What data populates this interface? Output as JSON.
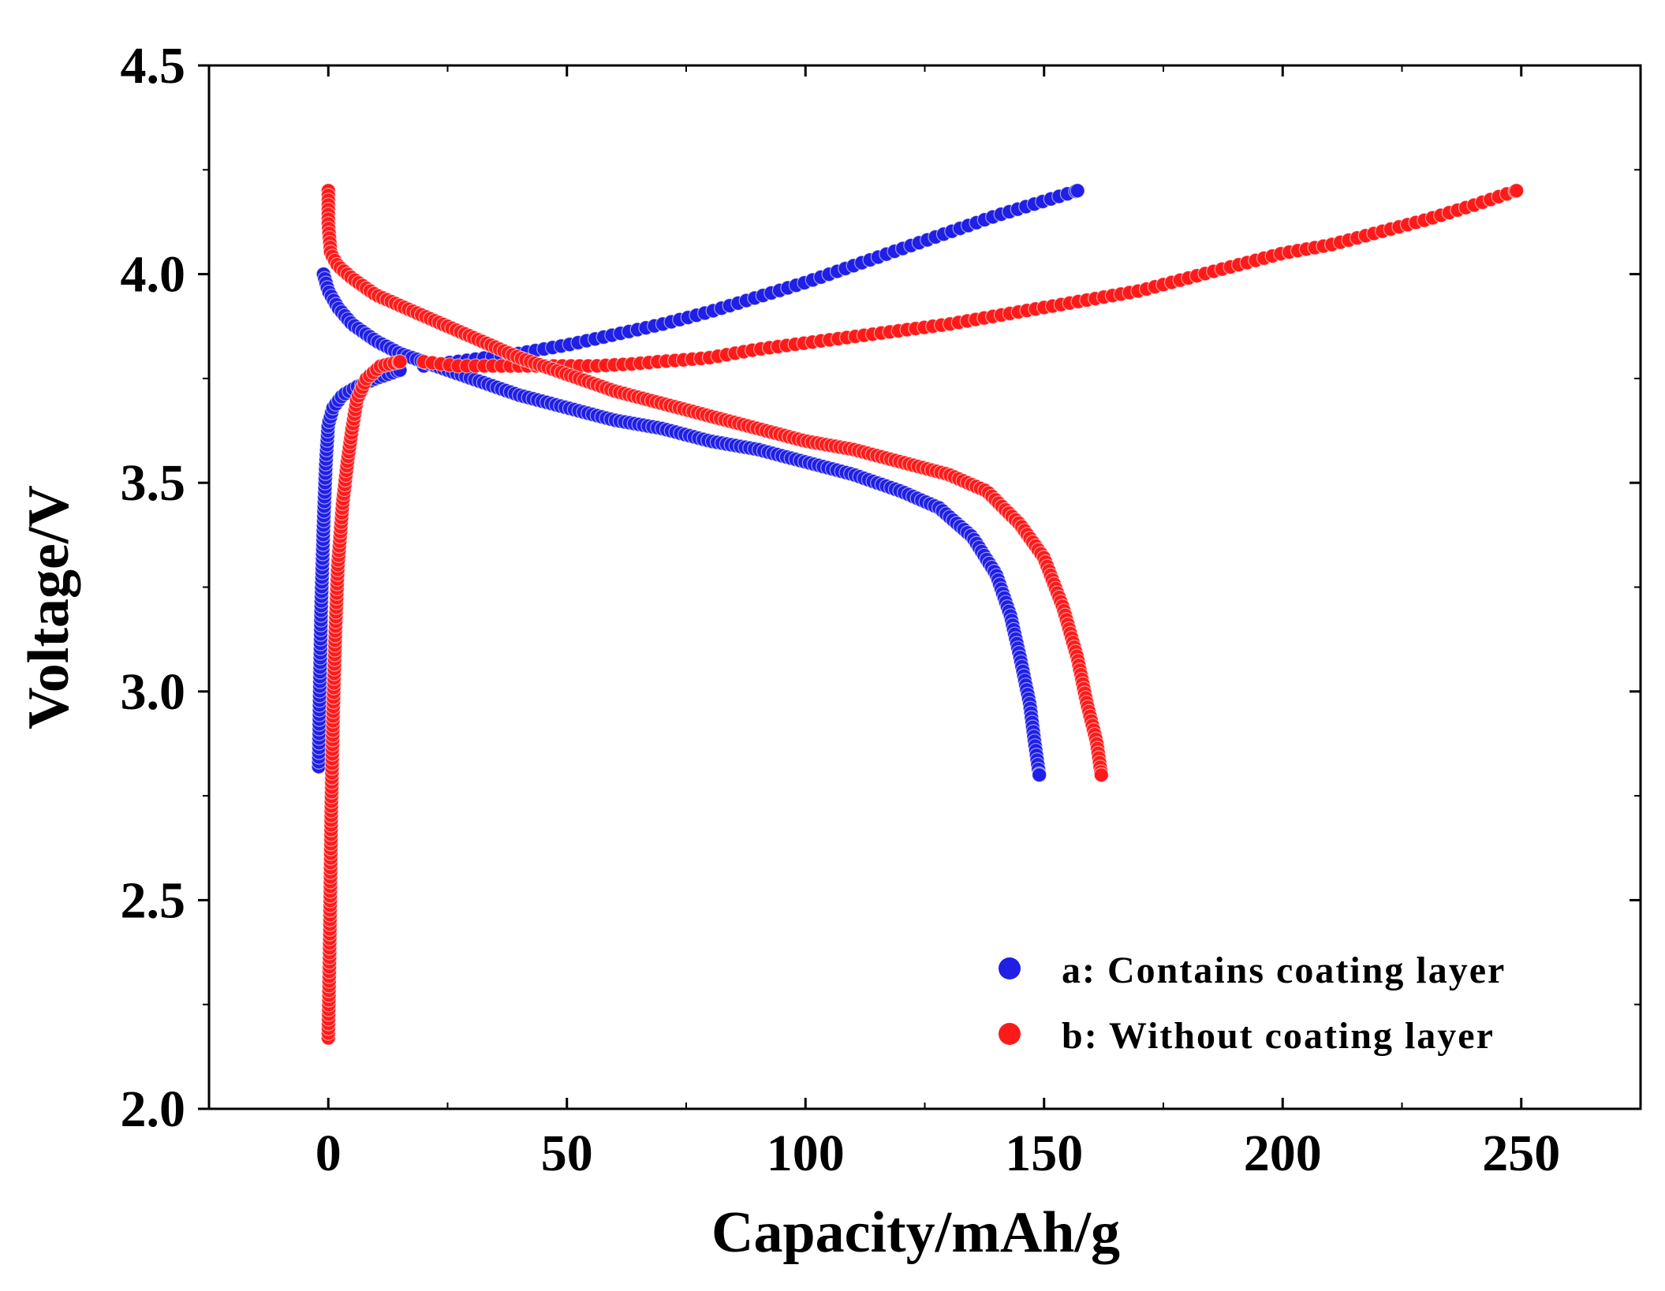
{
  "chart_data": {
    "type": "scatter",
    "title": "",
    "xlabel": "Capacity/mAh/g",
    "ylabel": "Voltage/V",
    "xlim": [
      -25,
      275
    ],
    "ylim": [
      2.0,
      4.5
    ],
    "x_ticks": [
      "0",
      "50",
      "100",
      "150",
      "200",
      "250"
    ],
    "x_tick_values": [
      0,
      50,
      100,
      150,
      200,
      250
    ],
    "y_ticks": [
      "2.0",
      "2.5",
      "3.0",
      "3.5",
      "4.0",
      "4.5"
    ],
    "y_tick_values": [
      2.0,
      2.5,
      3.0,
      3.5,
      4.0,
      4.5
    ],
    "x_minor_step": 25,
    "y_minor_step": 0.25,
    "grid": false,
    "legend_position": "bottom-right",
    "series": [
      {
        "name": "a: Contains coating layer",
        "legend_label": "a:  Contains  coating layer",
        "color": "#1f1fe6",
        "curves": [
          {
            "segment": "charge-rise",
            "points": [
              [
                -2,
                2.82
              ],
              [
                -1.8,
                3.0
              ],
              [
                -1.5,
                3.2
              ],
              [
                -1,
                3.4
              ],
              [
                -0.5,
                3.55
              ],
              [
                0,
                3.64
              ],
              [
                1,
                3.68
              ],
              [
                3,
                3.71
              ],
              [
                6,
                3.73
              ],
              [
                10,
                3.75
              ],
              [
                15,
                3.77
              ]
            ]
          },
          {
            "segment": "charge-plateau",
            "points": [
              [
                20,
                3.78
              ],
              [
                30,
                3.795
              ],
              [
                40,
                3.81
              ],
              [
                50,
                3.83
              ],
              [
                60,
                3.855
              ],
              [
                70,
                3.88
              ],
              [
                80,
                3.91
              ],
              [
                90,
                3.945
              ],
              [
                100,
                3.98
              ],
              [
                110,
                4.02
              ],
              [
                120,
                4.06
              ],
              [
                130,
                4.1
              ],
              [
                140,
                4.14
              ],
              [
                150,
                4.175
              ],
              [
                157,
                4.2
              ]
            ]
          },
          {
            "segment": "discharge",
            "points": [
              [
                -1,
                4.0
              ],
              [
                0,
                3.96
              ],
              [
                2,
                3.92
              ],
              [
                5,
                3.88
              ],
              [
                10,
                3.84
              ],
              [
                15,
                3.81
              ],
              [
                20,
                3.79
              ],
              [
                30,
                3.75
              ],
              [
                40,
                3.71
              ],
              [
                50,
                3.68
              ],
              [
                60,
                3.65
              ],
              [
                70,
                3.63
              ],
              [
                80,
                3.6
              ],
              [
                90,
                3.58
              ],
              [
                100,
                3.55
              ],
              [
                110,
                3.52
              ],
              [
                120,
                3.48
              ],
              [
                128,
                3.44
              ],
              [
                135,
                3.37
              ],
              [
                140,
                3.28
              ],
              [
                143,
                3.18
              ],
              [
                145,
                3.08
              ],
              [
                147,
                2.97
              ],
              [
                148,
                2.88
              ],
              [
                149,
                2.8
              ]
            ]
          }
        ]
      },
      {
        "name": "b: Without coating layer",
        "legend_label": "b:  Without coating layer",
        "color": "#ff1a1a",
        "curves": [
          {
            "segment": "charge-rise",
            "points": [
              [
                0,
                2.17
              ],
              [
                0.3,
                2.4
              ],
              [
                0.6,
                2.7
              ],
              [
                1,
                2.95
              ],
              [
                1.5,
                3.15
              ],
              [
                2,
                3.3
              ],
              [
                3,
                3.45
              ],
              [
                4,
                3.55
              ],
              [
                5,
                3.63
              ],
              [
                6,
                3.7
              ],
              [
                8,
                3.75
              ],
              [
                11,
                3.78
              ],
              [
                15,
                3.79
              ]
            ]
          },
          {
            "segment": "charge-plateau",
            "points": [
              [
                20,
                3.79
              ],
              [
                27,
                3.78
              ],
              [
                56,
                3.78
              ],
              [
                64,
                3.785
              ],
              [
                69,
                3.79
              ],
              [
                75,
                3.795
              ],
              [
                80,
                3.8
              ],
              [
                90,
                3.82
              ],
              [
                100,
                3.835
              ],
              [
                110,
                3.85
              ],
              [
                120,
                3.865
              ],
              [
                130,
                3.88
              ],
              [
                140,
                3.9
              ],
              [
                150,
                3.92
              ],
              [
                160,
                3.94
              ],
              [
                170,
                3.96
              ],
              [
                180,
                3.99
              ],
              [
                190,
                4.02
              ],
              [
                200,
                4.05
              ],
              [
                210,
                4.07
              ],
              [
                220,
                4.1
              ],
              [
                230,
                4.13
              ],
              [
                240,
                4.165
              ],
              [
                249,
                4.2
              ]
            ]
          },
          {
            "segment": "discharge",
            "points": [
              [
                0,
                4.2
              ],
              [
                0,
                4.12
              ],
              [
                0.5,
                4.05
              ],
              [
                2,
                4.02
              ],
              [
                5,
                3.99
              ],
              [
                10,
                3.95
              ],
              [
                20,
                3.9
              ],
              [
                30,
                3.85
              ],
              [
                40,
                3.8
              ],
              [
                50,
                3.76
              ],
              [
                60,
                3.72
              ],
              [
                70,
                3.69
              ],
              [
                80,
                3.66
              ],
              [
                90,
                3.63
              ],
              [
                100,
                3.6
              ],
              [
                110,
                3.58
              ],
              [
                120,
                3.55
              ],
              [
                130,
                3.52
              ],
              [
                138,
                3.48
              ],
              [
                145,
                3.4
              ],
              [
                150,
                3.32
              ],
              [
                154,
                3.2
              ],
              [
                157,
                3.08
              ],
              [
                159,
                2.97
              ],
              [
                161,
                2.88
              ],
              [
                162,
                2.8
              ]
            ]
          }
        ]
      }
    ]
  }
}
